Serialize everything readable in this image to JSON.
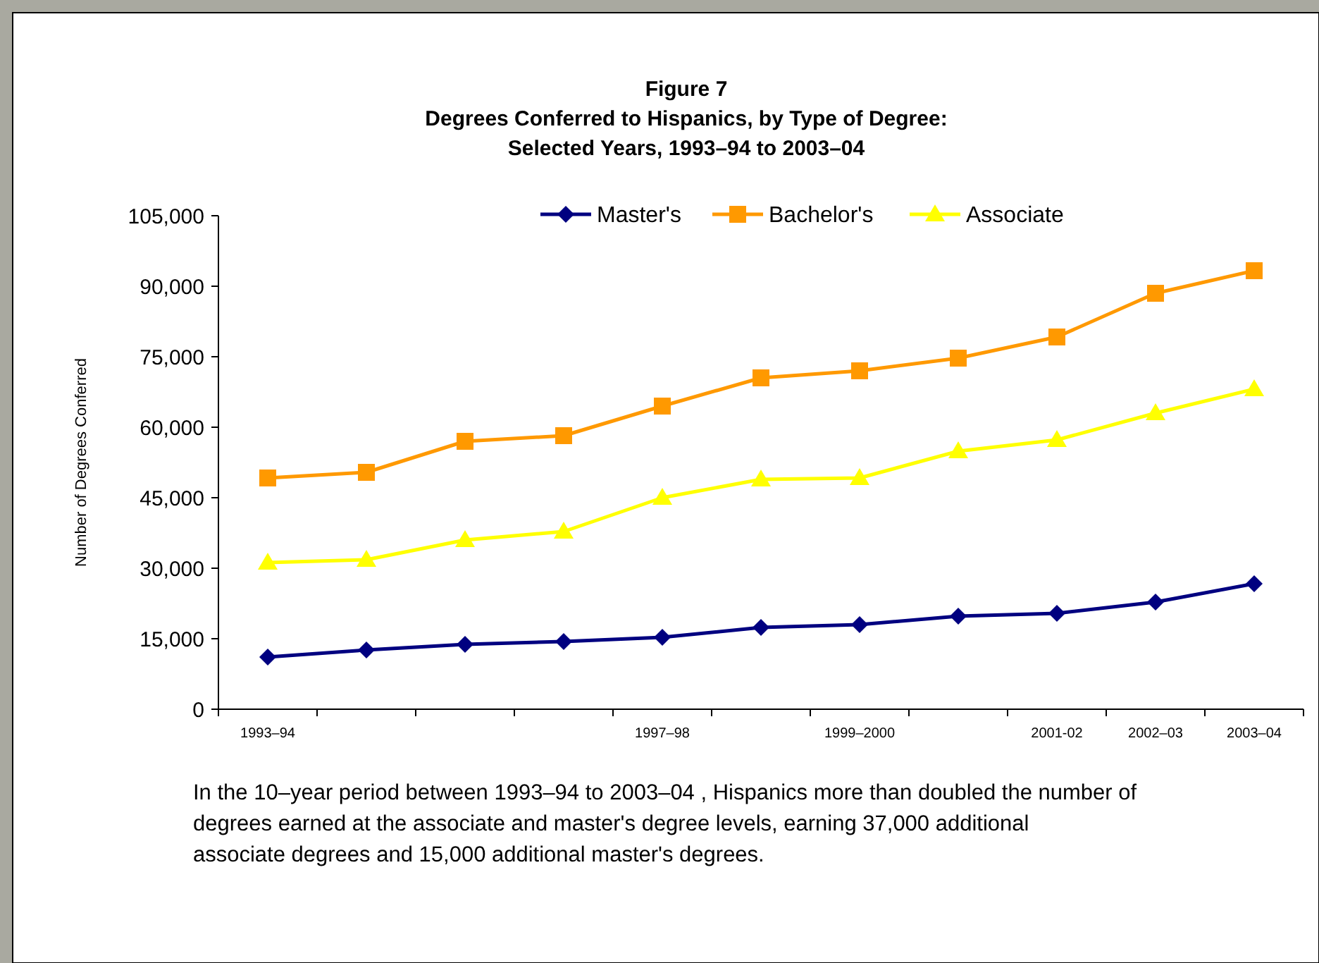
{
  "chart_data": {
    "type": "line",
    "title": "Figure 7\nDegrees Conferred to Hispanics, by Type of Degree:\nSelected Years, 1993–94 to 2003–04",
    "ylabel": "Number of Degrees Conferred",
    "categories": [
      "1993–94",
      null,
      null,
      null,
      "1997–98",
      null,
      "1999–2000",
      null,
      "2001-02",
      "2002–03",
      "2003–04"
    ],
    "series": [
      {
        "name": "Master's",
        "color": "#000080",
        "marker": "diamond",
        "values": [
          11100,
          12600,
          13800,
          14400,
          15300,
          17400,
          18000,
          19800,
          20400,
          22800,
          26700
        ]
      },
      {
        "name": "Bachelor's",
        "color": "#ff9900",
        "marker": "square",
        "values": [
          49200,
          50400,
          57000,
          58200,
          64500,
          70500,
          72000,
          74700,
          79200,
          88500,
          93300
        ]
      },
      {
        "name": "Associate",
        "color": "#ffff00",
        "marker": "triangle",
        "values": [
          31200,
          31800,
          36000,
          37800,
          45000,
          48900,
          49200,
          54900,
          57300,
          63000,
          68100
        ]
      }
    ],
    "ylim": [
      0,
      105000
    ],
    "yticks": [
      {
        "value": 0,
        "label": "0"
      },
      {
        "value": 15000,
        "label": "15,000"
      },
      {
        "value": 30000,
        "label": "30,000"
      },
      {
        "value": 45000,
        "label": "45,000"
      },
      {
        "value": 60000,
        "label": "60,000"
      },
      {
        "value": 75000,
        "label": "75,000"
      },
      {
        "value": 90000,
        "label": "90,000"
      },
      {
        "value": 105000,
        "label": "105,000"
      }
    ],
    "grid": false,
    "legend": "top",
    "annotations": [
      "In the 10–year period between 1993–94 to 2003–04 , Hispanics more than doubled the number of degrees earned at the associate and master's degree levels, earning 37,000 additional associate degrees and 15,000 additional master's degrees."
    ]
  }
}
